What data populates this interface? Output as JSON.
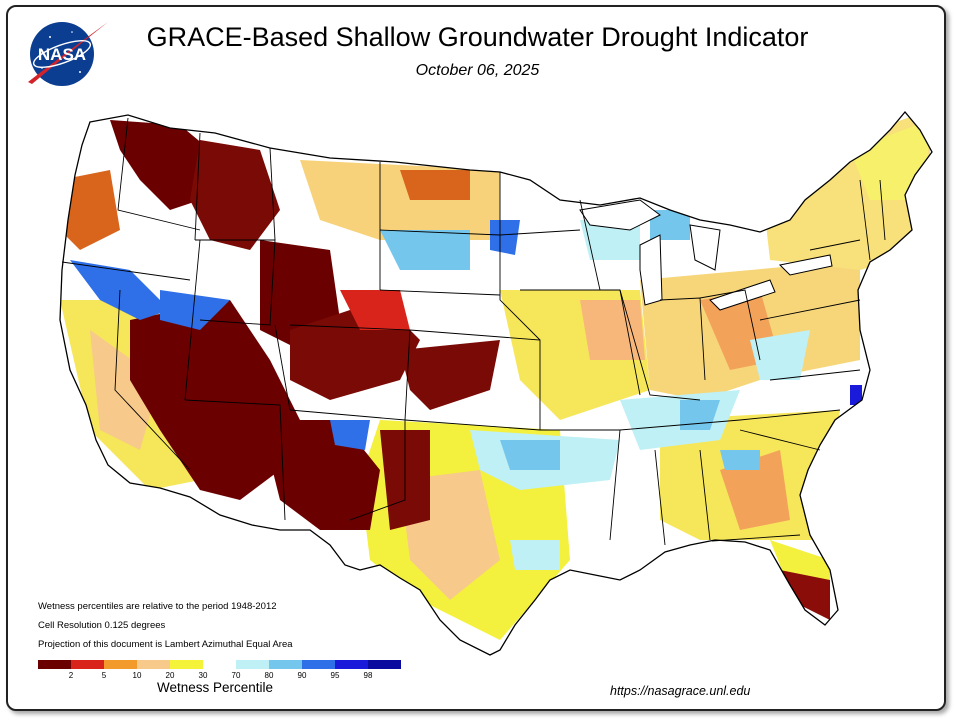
{
  "header": {
    "title": "GRACE-Based Shallow Groundwater Drought Indicator",
    "date": "October 06, 2025",
    "logo_text": "NASA"
  },
  "notes": [
    "Wetness percentiles are relative to the period 1948-2012",
    "Cell Resolution 0.125 degrees",
    "Projection of this document is Lambert Azimuthal Equal Area"
  ],
  "legend": {
    "title": "Wetness Percentile",
    "colors": [
      "#6b0000",
      "#d9241c",
      "#f39a2c",
      "#f7c98a",
      "#f4f33a",
      "#ffffff",
      "#bff0f5",
      "#74c6ec",
      "#2f6fe8",
      "#1a1adb",
      "#0a0a9e"
    ],
    "ticks": [
      "2",
      "5",
      "10",
      "20",
      "30",
      "70",
      "80",
      "90",
      "95",
      "98"
    ]
  },
  "footer": {
    "url": "https://nasagrace.unl.edu"
  }
}
